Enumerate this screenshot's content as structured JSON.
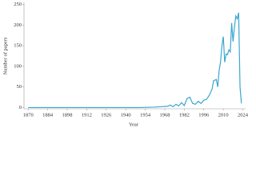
{
  "chart_data": {
    "type": "line",
    "x_label": "Year",
    "y_label": "Number of papers",
    "series": [
      {
        "name": "papers",
        "color": "#3ba6cf",
        "x": [
          1870,
          1950,
          1960,
          1965,
          1970,
          1972,
          1974,
          1976,
          1978,
          1980,
          1982,
          1984,
          1986,
          1988,
          1990,
          1992,
          1994,
          1996,
          1998,
          2000,
          2002,
          2003,
          2005,
          2006,
          2007,
          2008,
          2009,
          2010,
          2011,
          2012,
          2013,
          2014,
          2015,
          2016,
          2017,
          2018,
          2019,
          2020,
          2021,
          2022,
          2023
        ],
        "values": [
          0,
          0,
          1,
          2,
          3,
          6,
          2,
          8,
          4,
          12,
          5,
          22,
          25,
          10,
          8,
          15,
          10,
          18,
          20,
          30,
          45,
          65,
          68,
          50,
          90,
          110,
          150,
          172,
          110,
          130,
          128,
          140,
          135,
          205,
          160,
          195,
          222,
          215,
          230,
          50,
          10
        ]
      }
    ],
    "xlim": [
      1867,
      2026
    ],
    "ylim": [
      -3,
      255
    ],
    "xticks": [
      1870,
      1884,
      1898,
      1912,
      1926,
      1940,
      1954,
      1968,
      1982,
      1996,
      2010,
      2024
    ],
    "yticks": [
      0,
      50,
      100,
      150,
      200,
      250
    ]
  }
}
